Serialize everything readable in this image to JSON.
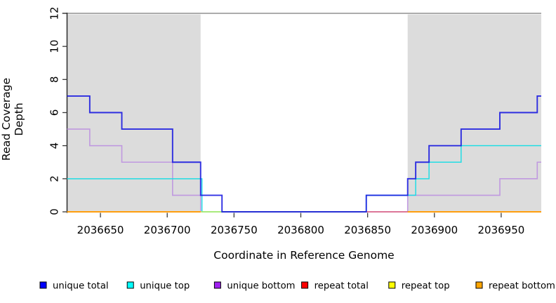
{
  "chart_data": {
    "type": "line",
    "step": true,
    "title": "",
    "xlabel": "Coordinate in Reference Genome",
    "ylabel": "Read Coverage Depth",
    "xlim": [
      2036625,
      2036980
    ],
    "ylim": [
      0,
      12
    ],
    "x_ticks": [
      2036650,
      2036700,
      2036750,
      2036800,
      2036850,
      2036900,
      2036950
    ],
    "y_ticks": [
      0,
      2,
      4,
      6,
      8,
      10,
      12
    ],
    "grid": false,
    "legend_position": "bottom",
    "shaded_regions": [
      {
        "name": "repeat-region-left",
        "x0": 2036625,
        "x1": 2036725,
        "color": "#DCDCDC"
      },
      {
        "name": "repeat-region-right",
        "x0": 2036880,
        "x1": 2036980,
        "color": "#DCDCDC"
      }
    ],
    "top_border_color": "#919191",
    "axis_color": "#2b2b2b",
    "tick_color": "#3a3a3a",
    "series": [
      {
        "name": "unique total",
        "swatch": "#0000FF",
        "line": "#1414E0",
        "width": 1.9,
        "opacity": 0.88,
        "segments": [
          {
            "points": [
              [
                2036625,
                7
              ],
              [
                2036642,
                6
              ],
              [
                2036666,
                5
              ],
              [
                2036704,
                3
              ],
              [
                2036725,
                1
              ],
              [
                2036741,
                0
              ],
              [
                2036849,
                1
              ],
              [
                2036880,
                2
              ],
              [
                2036886,
                3
              ],
              [
                2036896,
                4
              ],
              [
                2036920,
                5
              ],
              [
                2036949,
                6
              ],
              [
                2036977,
                7
              ]
            ],
            "end": 2036980
          }
        ]
      },
      {
        "name": "unique top",
        "swatch": "#00FFFF",
        "line": "#17DCE4",
        "width": 1.5,
        "opacity": 0.95,
        "segments": [
          {
            "points": [
              [
                2036625,
                2
              ],
              [
                2036726,
                0
              ],
              [
                2036849,
                1
              ],
              [
                2036886,
                2
              ],
              [
                2036896,
                3
              ],
              [
                2036920,
                4
              ]
            ],
            "end": 2036980
          }
        ]
      },
      {
        "name": "unique bottom",
        "swatch": "#A020F0",
        "line": "#BD93E0",
        "width": 1.6,
        "opacity": 0.92,
        "segments": [
          {
            "points": [
              [
                2036625,
                5
              ],
              [
                2036642,
                4
              ],
              [
                2036666,
                3
              ],
              [
                2036704,
                1
              ],
              [
                2036725,
                0
              ],
              [
                2036880,
                1
              ],
              [
                2036949,
                2
              ],
              [
                2036977,
                3
              ]
            ],
            "end": 2036980
          }
        ]
      },
      {
        "name": "repeat total",
        "swatch": "#FF0000",
        "line": "#DC5070",
        "width": 1.4,
        "opacity": 0.9,
        "segments": [
          {
            "points": [
              [
                2036849,
                0
              ]
            ],
            "end": 2036980
          }
        ]
      },
      {
        "name": "repeat top",
        "swatch": "#FFFF00",
        "line": "#FFFF00",
        "width": 1.4,
        "opacity": 0.62,
        "segments": [
          {
            "points": [
              [
                2036625,
                0
              ]
            ],
            "end": 2036849
          }
        ]
      },
      {
        "name": "repeat bottom",
        "swatch": "#FFA500",
        "line": "#FF9E0D",
        "width": 1.9,
        "opacity": 1,
        "segments": [
          {
            "points": [
              [
                2036625,
                0
              ]
            ],
            "end": 2036725
          },
          {
            "points": [
              [
                2036880,
                0
              ]
            ],
            "end": 2036980
          }
        ]
      }
    ],
    "draw_order": [
      2,
      1,
      4,
      3,
      5,
      0
    ]
  }
}
